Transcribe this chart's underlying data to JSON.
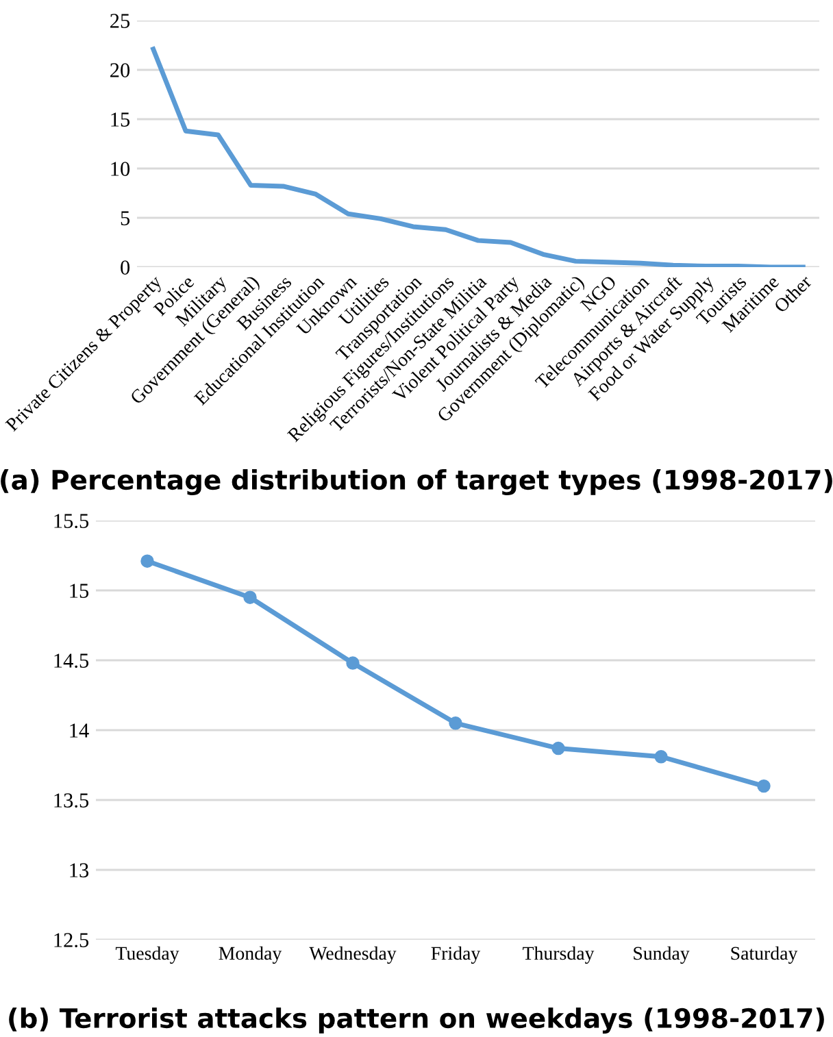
{
  "chart_data": [
    {
      "type": "line",
      "title": "(a) Percentage distribution of target types (1998-2017)",
      "categories": [
        "Private Citizens & Property",
        "Police",
        "Military",
        "Government (General)",
        "Business",
        "Educational Institution",
        "Unknown",
        "Utilities",
        "Transportation",
        "Religious Figures/Institutions",
        "Terrorists/Non-State Militia",
        "Violent Political Party",
        "Journalists & Media",
        "Government (Diplomatic)",
        "NGO",
        "Telecommunication",
        "Airports & Aircraft",
        "Food or Water Supply",
        "Tourists",
        "Maritime",
        "Other"
      ],
      "series": [
        {
          "color": "#5b9bd5",
          "values": [
            22.1,
            13.8,
            13.4,
            8.3,
            8.2,
            7.4,
            5.4,
            4.9,
            4.1,
            3.8,
            2.7,
            2.5,
            1.3,
            0.6,
            0.5,
            0.4,
            0.2,
            0.1,
            0.1,
            0.0,
            0.0
          ]
        }
      ],
      "ylim": [
        0,
        25
      ],
      "yticks": [
        0,
        5,
        10,
        15,
        20,
        25
      ],
      "grid": "y",
      "marker": "none",
      "legend": false
    },
    {
      "type": "line",
      "title": "(b) Terrorist attacks pattern on weekdays (1998-2017)",
      "categories": [
        "Tuesday",
        "Monday",
        "Wednesday",
        "Friday",
        "Thursday",
        "Sunday",
        "Saturday"
      ],
      "series": [
        {
          "color": "#5b9bd5",
          "values": [
            15.21,
            14.95,
            14.48,
            14.05,
            13.87,
            13.81,
            13.6
          ]
        }
      ],
      "ylim": [
        12.5,
        15.5
      ],
      "yticks": [
        12.5,
        13,
        13.5,
        14,
        14.5,
        15,
        15.5
      ],
      "grid": "y",
      "marker": "circle",
      "legend": false
    }
  ]
}
